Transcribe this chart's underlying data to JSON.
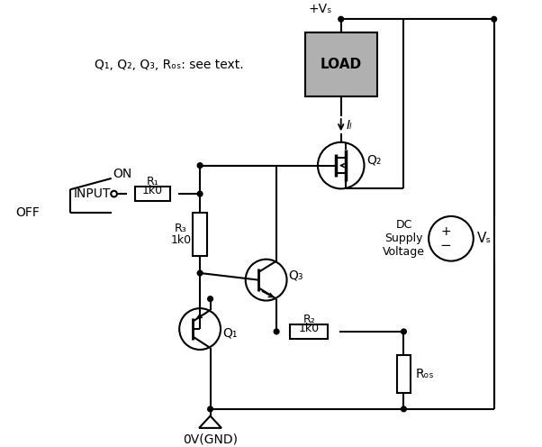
{
  "bg_color": "#ffffff",
  "line_color": "#000000",
  "lw": 1.5,
  "fig_width": 6.02,
  "fig_height": 4.96,
  "dpi": 100,
  "annotation": "Q₁, Q₂, Q₃, Rₒₛ: see text.",
  "label_Vs_top": "+Vₛ",
  "label_LOAD": "LOAD",
  "label_IL": "Iₗ",
  "label_Q2": "Q₂",
  "label_Q3": "Q₃",
  "label_Q1": "Q₁",
  "label_R1_a": "R₁",
  "label_R1_b": "1k0",
  "label_R2_a": "R₂",
  "label_R2_b": "1k0",
  "label_R3_a": "R₃",
  "label_R3_b": "1k0",
  "label_RCS": "Rₒₛ",
  "label_INPUT": "INPUT",
  "label_ON": "ON",
  "label_OFF": "OFF",
  "label_GND": "0V(GND)",
  "label_DC": "DC\nSupply\nVoltage",
  "label_Vs_circ": "Vₛ",
  "load_gray": "#b0b0b0"
}
